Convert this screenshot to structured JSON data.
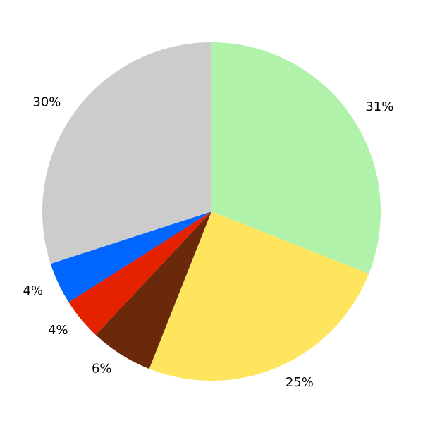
{
  "chart_data": {
    "type": "pie",
    "title": "",
    "start_angle": "top",
    "direction": "clockwise",
    "slices": [
      {
        "label": "31%",
        "value": 31,
        "color": "#b0f2a9"
      },
      {
        "label": "25%",
        "value": 25,
        "color": "#ffe55e"
      },
      {
        "label": "6%",
        "value": 6,
        "color": "#6b290b"
      },
      {
        "label": "4%",
        "value": 4,
        "color": "#e42200"
      },
      {
        "label": "4%",
        "value": 4,
        "color": "#0066ff"
      },
      {
        "label": "30%",
        "value": 30,
        "color": "#cccccc"
      }
    ]
  }
}
